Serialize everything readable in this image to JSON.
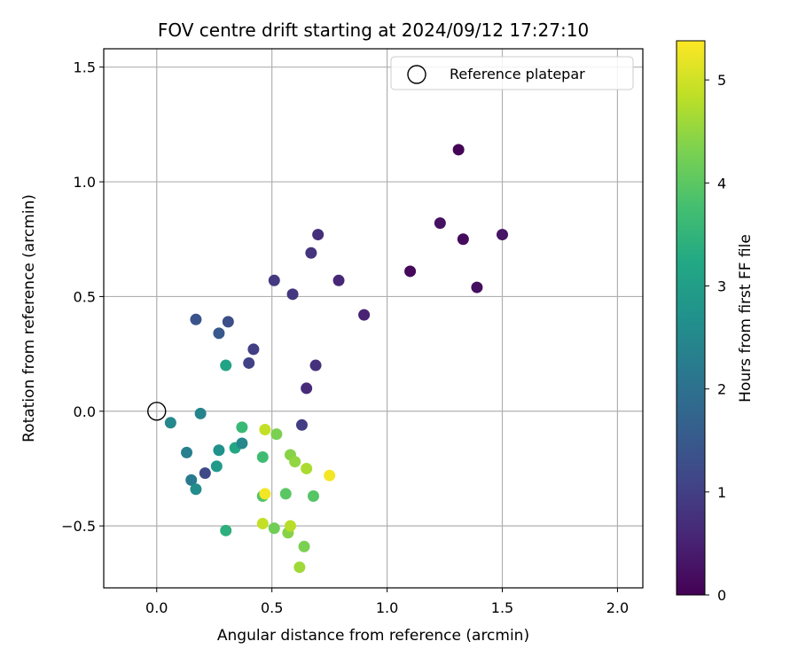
{
  "chart_data": {
    "type": "scatter",
    "title": "FOV centre drift starting at 2024/09/12 17:27:10",
    "xlabel": "Angular distance from reference (arcmin)",
    "ylabel": "Rotation from reference (arcmin)",
    "xlim": [
      -0.23,
      2.11
    ],
    "ylim": [
      -0.77,
      1.58
    ],
    "xticks": [
      0.0,
      0.5,
      1.0,
      1.5,
      2.0
    ],
    "xtick_labels": [
      "0.0",
      "0.5",
      "1.0",
      "1.5",
      "2.0"
    ],
    "yticks": [
      -0.5,
      0.0,
      0.5,
      1.0,
      1.5
    ],
    "ytick_labels": [
      "−0.5",
      "0.0",
      "0.5",
      "1.0",
      "1.5"
    ],
    "grid": true,
    "legend": {
      "position": "top-right",
      "entries": [
        {
          "label": "Reference platepar",
          "marker": "open-circle",
          "color": "#000000"
        }
      ]
    },
    "reference_point": {
      "x": 0.0,
      "y": 0.0
    },
    "colorbar": {
      "label": "Hours from first FF file",
      "min": 0,
      "max": 5.38,
      "ticks": [
        0,
        1,
        2,
        3,
        4,
        5
      ],
      "tick_labels": [
        "0",
        "1",
        "2",
        "3",
        "4",
        "5"
      ],
      "colormap": "viridis"
    },
    "series": [
      {
        "marker": "filled-circle",
        "points": [
          {
            "x": 1.31,
            "y": 1.14,
            "hours": 0.05
          },
          {
            "x": 1.23,
            "y": 0.82,
            "hours": 0.25
          },
          {
            "x": 1.33,
            "y": 0.75,
            "hours": 0.15
          },
          {
            "x": 1.5,
            "y": 0.77,
            "hours": 0.3
          },
          {
            "x": 1.1,
            "y": 0.61,
            "hours": 0.1
          },
          {
            "x": 1.39,
            "y": 0.54,
            "hours": 0.2
          },
          {
            "x": 0.7,
            "y": 0.77,
            "hours": 0.7
          },
          {
            "x": 0.67,
            "y": 0.69,
            "hours": 0.8
          },
          {
            "x": 0.51,
            "y": 0.57,
            "hours": 0.9
          },
          {
            "x": 0.59,
            "y": 0.51,
            "hours": 0.85
          },
          {
            "x": 0.79,
            "y": 0.57,
            "hours": 0.6
          },
          {
            "x": 0.9,
            "y": 0.42,
            "hours": 0.5
          },
          {
            "x": 0.69,
            "y": 0.2,
            "hours": 0.75
          },
          {
            "x": 0.65,
            "y": 0.1,
            "hours": 0.65
          },
          {
            "x": 0.63,
            "y": -0.06,
            "hours": 0.95
          },
          {
            "x": 0.42,
            "y": 0.27,
            "hours": 1.0
          },
          {
            "x": 0.4,
            "y": 0.21,
            "hours": 1.05
          },
          {
            "x": 0.17,
            "y": 0.4,
            "hours": 1.4
          },
          {
            "x": 0.31,
            "y": 0.39,
            "hours": 1.3
          },
          {
            "x": 0.27,
            "y": 0.34,
            "hours": 1.5
          },
          {
            "x": 0.21,
            "y": -0.27,
            "hours": 1.2
          },
          {
            "x": 0.06,
            "y": -0.05,
            "hours": 2.5
          },
          {
            "x": 0.19,
            "y": -0.01,
            "hours": 2.4
          },
          {
            "x": 0.13,
            "y": -0.18,
            "hours": 2.3
          },
          {
            "x": 0.15,
            "y": -0.3,
            "hours": 2.2
          },
          {
            "x": 0.17,
            "y": -0.34,
            "hours": 2.6
          },
          {
            "x": 0.27,
            "y": -0.17,
            "hours": 2.7
          },
          {
            "x": 0.26,
            "y": -0.24,
            "hours": 2.9
          },
          {
            "x": 0.3,
            "y": 0.2,
            "hours": 3.1
          },
          {
            "x": 0.34,
            "y": -0.16,
            "hours": 3.2
          },
          {
            "x": 0.37,
            "y": -0.14,
            "hours": 2.5
          },
          {
            "x": 0.37,
            "y": -0.07,
            "hours": 3.6
          },
          {
            "x": 0.3,
            "y": -0.52,
            "hours": 3.4
          },
          {
            "x": 0.46,
            "y": -0.2,
            "hours": 3.7
          },
          {
            "x": 0.46,
            "y": -0.37,
            "hours": 3.9
          },
          {
            "x": 0.47,
            "y": -0.08,
            "hours": 4.9
          },
          {
            "x": 0.52,
            "y": -0.1,
            "hours": 4.3
          },
          {
            "x": 0.46,
            "y": -0.49,
            "hours": 4.9
          },
          {
            "x": 0.51,
            "y": -0.51,
            "hours": 4.2
          },
          {
            "x": 0.47,
            "y": -0.36,
            "hours": 5.3
          },
          {
            "x": 0.56,
            "y": -0.36,
            "hours": 4.0
          },
          {
            "x": 0.58,
            "y": -0.19,
            "hours": 4.4
          },
          {
            "x": 0.6,
            "y": -0.22,
            "hours": 4.5
          },
          {
            "x": 0.65,
            "y": -0.25,
            "hours": 4.7
          },
          {
            "x": 0.68,
            "y": -0.37,
            "hours": 3.95
          },
          {
            "x": 0.57,
            "y": -0.53,
            "hours": 4.4
          },
          {
            "x": 0.58,
            "y": -0.5,
            "hours": 4.8
          },
          {
            "x": 0.64,
            "y": -0.59,
            "hours": 4.3
          },
          {
            "x": 0.62,
            "y": -0.68,
            "hours": 4.6
          },
          {
            "x": 0.75,
            "y": -0.28,
            "hours": 5.3
          }
        ]
      }
    ]
  }
}
